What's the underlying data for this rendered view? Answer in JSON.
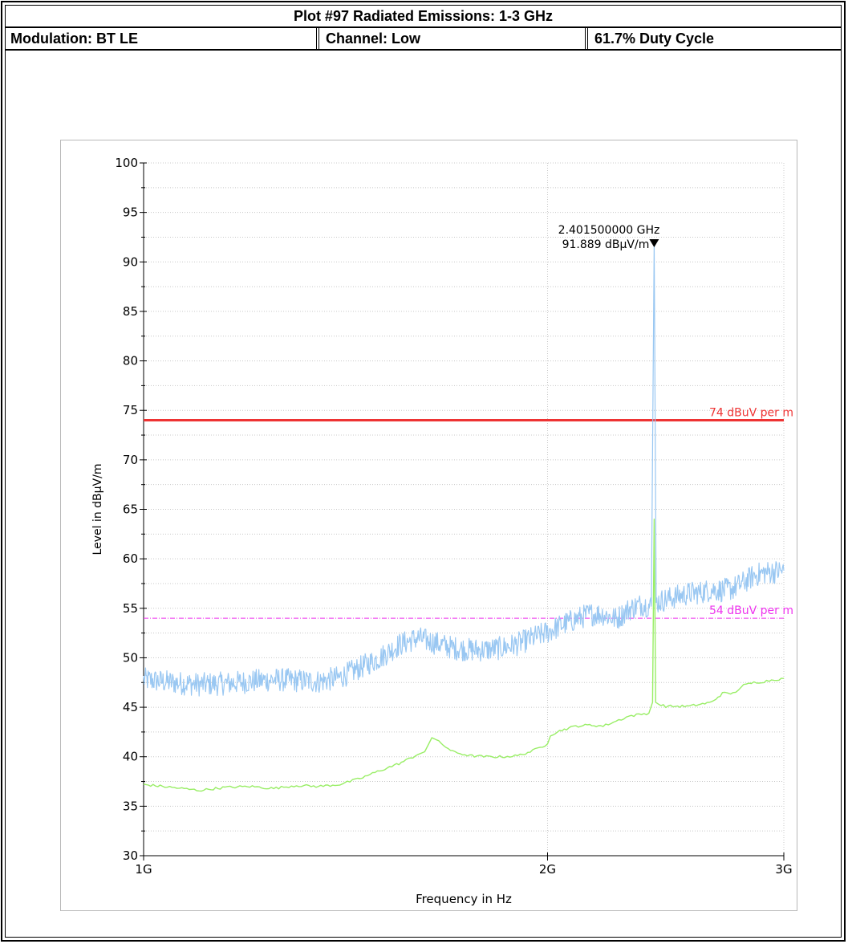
{
  "header": {
    "title": "Plot #97 Radiated Emissions: 1-3 GHz",
    "modulation": "Modulation: BT LE",
    "channel": "Channel: Low",
    "duty_cycle": "61.7% Duty Cycle"
  },
  "colors": {
    "peak_trace": "#99c7f2",
    "average_trace": "#99ee66",
    "limit_peak": "#ee3333",
    "limit_average": "#ee33ee",
    "grid": "#c8c8c8"
  },
  "chart_data": {
    "type": "line",
    "title": "",
    "xlabel": "Frequency in Hz",
    "ylabel": "Level in dBµV/m",
    "xscale": "log",
    "xlim": [
      1000000000,
      3000000000
    ],
    "ylim": [
      30,
      100
    ],
    "grid": true,
    "x_ticks": [
      {
        "value": 1000000000,
        "label": "1G"
      },
      {
        "value": 2000000000,
        "label": "2G"
      },
      {
        "value": 3000000000,
        "label": "3G"
      }
    ],
    "y_ticks": [
      30,
      35,
      40,
      45,
      50,
      55,
      60,
      65,
      70,
      75,
      80,
      85,
      90,
      95,
      100
    ],
    "limit_lines": [
      {
        "label": "74 dBuV per m",
        "value": 74,
        "style": "solid"
      },
      {
        "label": "54 dBuV per m",
        "value": 54,
        "style": "dash-dot"
      }
    ],
    "marker": {
      "freq_hz": 2401500000,
      "level": 91.889,
      "freq_label": "2.401500000 GHz",
      "level_label": "91.889 dBµV/m"
    },
    "series": [
      {
        "color": "#99c7f2",
        "x": [
          1000000000,
          1050000000,
          1100000000,
          1150000000,
          1200000000,
          1250000000,
          1300000000,
          1350000000,
          1400000000,
          1450000000,
          1500000000,
          1550000000,
          1600000000,
          1650000000,
          1700000000,
          1750000000,
          1800000000,
          1850000000,
          1900000000,
          1950000000,
          2000000000,
          2050000000,
          2100000000,
          2150000000,
          2200000000,
          2250000000,
          2300000000,
          2350000000,
          2390000000,
          2401500000,
          2410000000,
          2450000000,
          2500000000,
          2550000000,
          2600000000,
          2650000000,
          2700000000,
          2750000000,
          2800000000,
          2850000000,
          2900000000,
          2950000000,
          3000000000
        ],
        "values": [
          47.8,
          47.5,
          47.3,
          47.4,
          47.6,
          47.8,
          47.7,
          47.6,
          48.0,
          49.0,
          50.0,
          51.3,
          52.0,
          51.5,
          51.0,
          50.8,
          50.8,
          51.0,
          51.4,
          52.0,
          52.6,
          53.3,
          53.9,
          54.4,
          54.4,
          53.9,
          54.9,
          55.4,
          55.2,
          91.889,
          55.6,
          55.9,
          56.2,
          56.5,
          56.6,
          56.9,
          56.8,
          57.0,
          57.6,
          58.3,
          58.6,
          58.7,
          58.8
        ]
      },
      {
        "color": "#99ee66",
        "x": [
          1000000000,
          1050000000,
          1100000000,
          1150000000,
          1200000000,
          1250000000,
          1300000000,
          1350000000,
          1400000000,
          1450000000,
          1500000000,
          1550000000,
          1600000000,
          1620000000,
          1640000000,
          1700000000,
          1750000000,
          1800000000,
          1850000000,
          1900000000,
          1950000000,
          2000000000,
          2010000000,
          2050000000,
          2100000000,
          2150000000,
          2200000000,
          2250000000,
          2300000000,
          2350000000,
          2380000000,
          2395000000,
          2401500000,
          2408000000,
          2420000000,
          2450000000,
          2500000000,
          2550000000,
          2600000000,
          2650000000,
          2700000000,
          2750000000,
          2800000000,
          2850000000,
          2900000000,
          2950000000,
          3000000000
        ],
        "values": [
          37.2,
          36.9,
          36.6,
          36.9,
          37.0,
          36.8,
          37.1,
          37.0,
          37.2,
          37.8,
          38.6,
          39.3,
          40.2,
          40.5,
          42.0,
          40.5,
          40.1,
          40.0,
          40.0,
          40.1,
          40.6,
          41.3,
          42.2,
          42.7,
          43.1,
          43.2,
          43.1,
          43.6,
          44.1,
          44.3,
          44.4,
          45.5,
          64.0,
          45.5,
          45.3,
          45.1,
          45.1,
          45.1,
          45.3,
          45.5,
          46.4,
          46.4,
          47.2,
          47.5,
          47.6,
          47.8,
          47.9
        ]
      }
    ]
  }
}
